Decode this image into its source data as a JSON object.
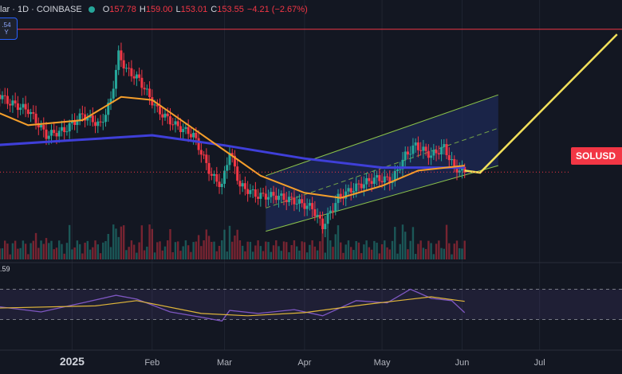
{
  "legend": {
    "symbol": "lar · 1D · COINBASE",
    "open_label": "O",
    "open": "157.78",
    "high_label": "H",
    "high": "159.00",
    "low_label": "L",
    "low": "153.01",
    "close_label": "C",
    "close": "153.55",
    "change": "−4.21 (−2.67%)"
  },
  "mini_badge": {
    "line1": ".54",
    "line2": "Y"
  },
  "price_tag": "SOLUSD",
  "rsi_value": ".59",
  "colors": {
    "background": "#131722",
    "up": "#26a69a",
    "down": "#f23645",
    "ma_fast": "#f59e2b",
    "ma_slow": "#3f3fd9",
    "channel": "#8bc34a",
    "channel_fill": "#1e2a55",
    "projection": "#f2e05a",
    "rsi": "#7e57c2",
    "rsi_ma": "#e0b63a",
    "resistance": "#f23645"
  },
  "chart_data": {
    "type": "line",
    "title": "",
    "x_ticks": [
      "2025",
      "Feb",
      "Mar",
      "Apr",
      "May",
      "Jun",
      "Jul"
    ],
    "x_tick_dates": [
      "2025-01-01",
      "2025-02-01",
      "2025-03-01",
      "2025-04-01",
      "2025-05-01",
      "2025-06-01",
      "2025-07-01"
    ],
    "series": [
      {
        "name": "",
        "role": "price",
        "points": [
          [
            "2024-12-01",
            235
          ],
          [
            "2024-12-08",
            222
          ],
          [
            "2024-12-15",
            215
          ],
          [
            "2024-12-22",
            190
          ],
          [
            "2024-12-29",
            195
          ],
          [
            "2025-01-05",
            210
          ],
          [
            "2025-01-12",
            200
          ],
          [
            "2025-01-16",
            225
          ],
          [
            "2025-01-19",
            270
          ],
          [
            "2025-01-22",
            255
          ],
          [
            "2025-01-27",
            245
          ],
          [
            "2025-02-03",
            215
          ],
          [
            "2025-02-10",
            200
          ],
          [
            "2025-02-17",
            190
          ],
          [
            "2025-02-24",
            150
          ],
          [
            "2025-02-28",
            140
          ],
          [
            "2025-03-03",
            175
          ],
          [
            "2025-03-07",
            140
          ],
          [
            "2025-03-14",
            130
          ],
          [
            "2025-03-21",
            130
          ],
          [
            "2025-03-28",
            125
          ],
          [
            "2025-04-04",
            118
          ],
          [
            "2025-04-08",
            100
          ],
          [
            "2025-04-14",
            128
          ],
          [
            "2025-04-21",
            139
          ],
          [
            "2025-04-28",
            147
          ],
          [
            "2025-05-05",
            146
          ],
          [
            "2025-05-10",
            170
          ],
          [
            "2025-05-14",
            180
          ],
          [
            "2025-05-20",
            170
          ],
          [
            "2025-05-25",
            178
          ],
          [
            "2025-05-29",
            158
          ],
          [
            "2025-06-02",
            153.55
          ]
        ]
      },
      {
        "name": "",
        "role": "ma_fast",
        "points": [
          [
            "2024-12-01",
            215
          ],
          [
            "2024-12-15",
            200
          ],
          [
            "2025-01-05",
            205
          ],
          [
            "2025-01-20",
            228
          ],
          [
            "2025-02-01",
            225
          ],
          [
            "2025-02-15",
            200
          ],
          [
            "2025-03-01",
            175
          ],
          [
            "2025-03-15",
            150
          ],
          [
            "2025-04-01",
            133
          ],
          [
            "2025-04-15",
            128
          ],
          [
            "2025-05-01",
            140
          ],
          [
            "2025-05-15",
            155
          ],
          [
            "2025-06-02",
            160
          ]
        ]
      },
      {
        "name": "",
        "role": "ma_slow",
        "points": [
          [
            "2024-12-01",
            180
          ],
          [
            "2025-01-01",
            185
          ],
          [
            "2025-02-01",
            190
          ],
          [
            "2025-03-01",
            180
          ],
          [
            "2025-04-01",
            167
          ],
          [
            "2025-05-01",
            158
          ],
          [
            "2025-06-02",
            158
          ]
        ]
      }
    ],
    "annotations": {
      "resistance_price": 295,
      "channel_upper": [
        [
          "2025-03-17",
          150
        ],
        [
          "2025-06-15",
          230
        ]
      ],
      "channel_lower": [
        [
          "2025-03-17",
          95
        ],
        [
          "2025-06-15",
          160
        ]
      ],
      "channel_mid": [
        [
          "2025-03-17",
          118
        ],
        [
          "2025-06-15",
          197
        ]
      ],
      "projection": [
        [
          "2025-06-02",
          155
        ],
        [
          "2025-06-08",
          153
        ],
        [
          "2025-07-31",
          290
        ]
      ]
    },
    "rsi": {
      "levels": [
        70,
        30
      ],
      "points": [
        [
          "2024-12-01",
          48
        ],
        [
          "2024-12-20",
          40
        ],
        [
          "2025-01-05",
          52
        ],
        [
          "2025-01-18",
          62
        ],
        [
          "2025-01-26",
          57
        ],
        [
          "2025-02-08",
          40
        ],
        [
          "2025-02-20",
          33
        ],
        [
          "2025-02-28",
          28
        ],
        [
          "2025-03-03",
          42
        ],
        [
          "2025-03-14",
          38
        ],
        [
          "2025-03-28",
          43
        ],
        [
          "2025-04-08",
          35
        ],
        [
          "2025-04-21",
          55
        ],
        [
          "2025-05-03",
          52
        ],
        [
          "2025-05-12",
          70
        ],
        [
          "2025-05-20",
          58
        ],
        [
          "2025-05-28",
          55
        ],
        [
          "2025-06-02",
          39
        ]
      ],
      "ma_points": [
        [
          "2024-12-01",
          45
        ],
        [
          "2025-01-10",
          48
        ],
        [
          "2025-01-26",
          55
        ],
        [
          "2025-02-20",
          38
        ],
        [
          "2025-03-10",
          35
        ],
        [
          "2025-04-01",
          39
        ],
        [
          "2025-04-25",
          50
        ],
        [
          "2025-05-20",
          60
        ],
        [
          "2025-06-02",
          54
        ]
      ]
    }
  }
}
